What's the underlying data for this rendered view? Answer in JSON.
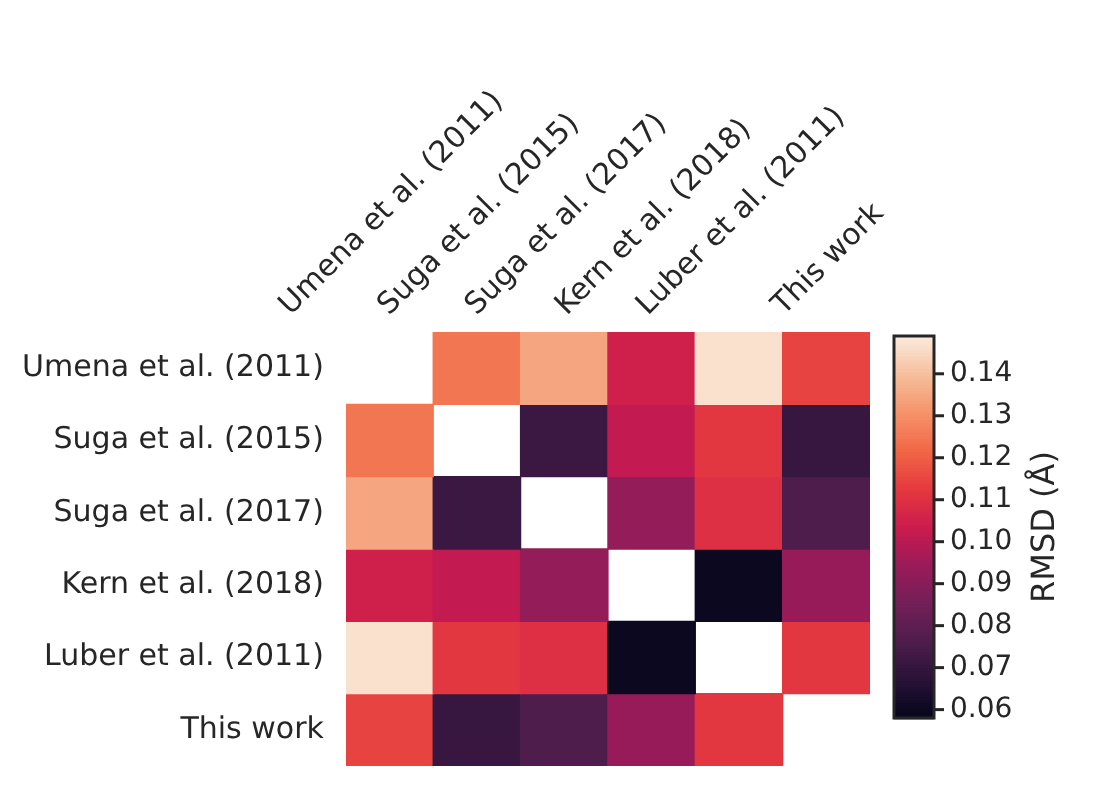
{
  "chart_data": {
    "type": "heatmap",
    "clabel": "RMSD (Å)",
    "categories": [
      "Umena et al. (2011)",
      "Suga et al. (2015)",
      "Suga et al. (2017)",
      "Kern et al. (2018)",
      "Luber et al. (2011)",
      "This work"
    ],
    "y_categories": [
      "Umena et al. (2011)",
      "Suga et al. (2015)",
      "Suga et al. (2017)",
      "Kern et al. (2018)",
      "Luber et al. (2011)",
      "This work"
    ],
    "cells": [
      [
        null,
        0.125,
        0.135,
        0.105,
        0.147,
        0.115
      ],
      [
        0.125,
        null,
        0.072,
        0.102,
        0.112,
        0.071
      ],
      [
        0.135,
        0.072,
        null,
        0.093,
        0.11,
        0.077
      ],
      [
        0.105,
        0.102,
        0.093,
        null,
        0.06,
        0.094
      ],
      [
        0.147,
        0.112,
        0.11,
        0.06,
        null,
        0.112
      ],
      [
        0.115,
        0.071,
        0.077,
        0.094,
        0.112,
        null
      ]
    ],
    "clim": [
      0.058,
      0.149
    ],
    "cticks": [
      0.06,
      0.07,
      0.08,
      0.09,
      {
        "value": 0.1,
        "label": "0.10"
      },
      0.11,
      0.12,
      0.13,
      0.14
    ]
  }
}
